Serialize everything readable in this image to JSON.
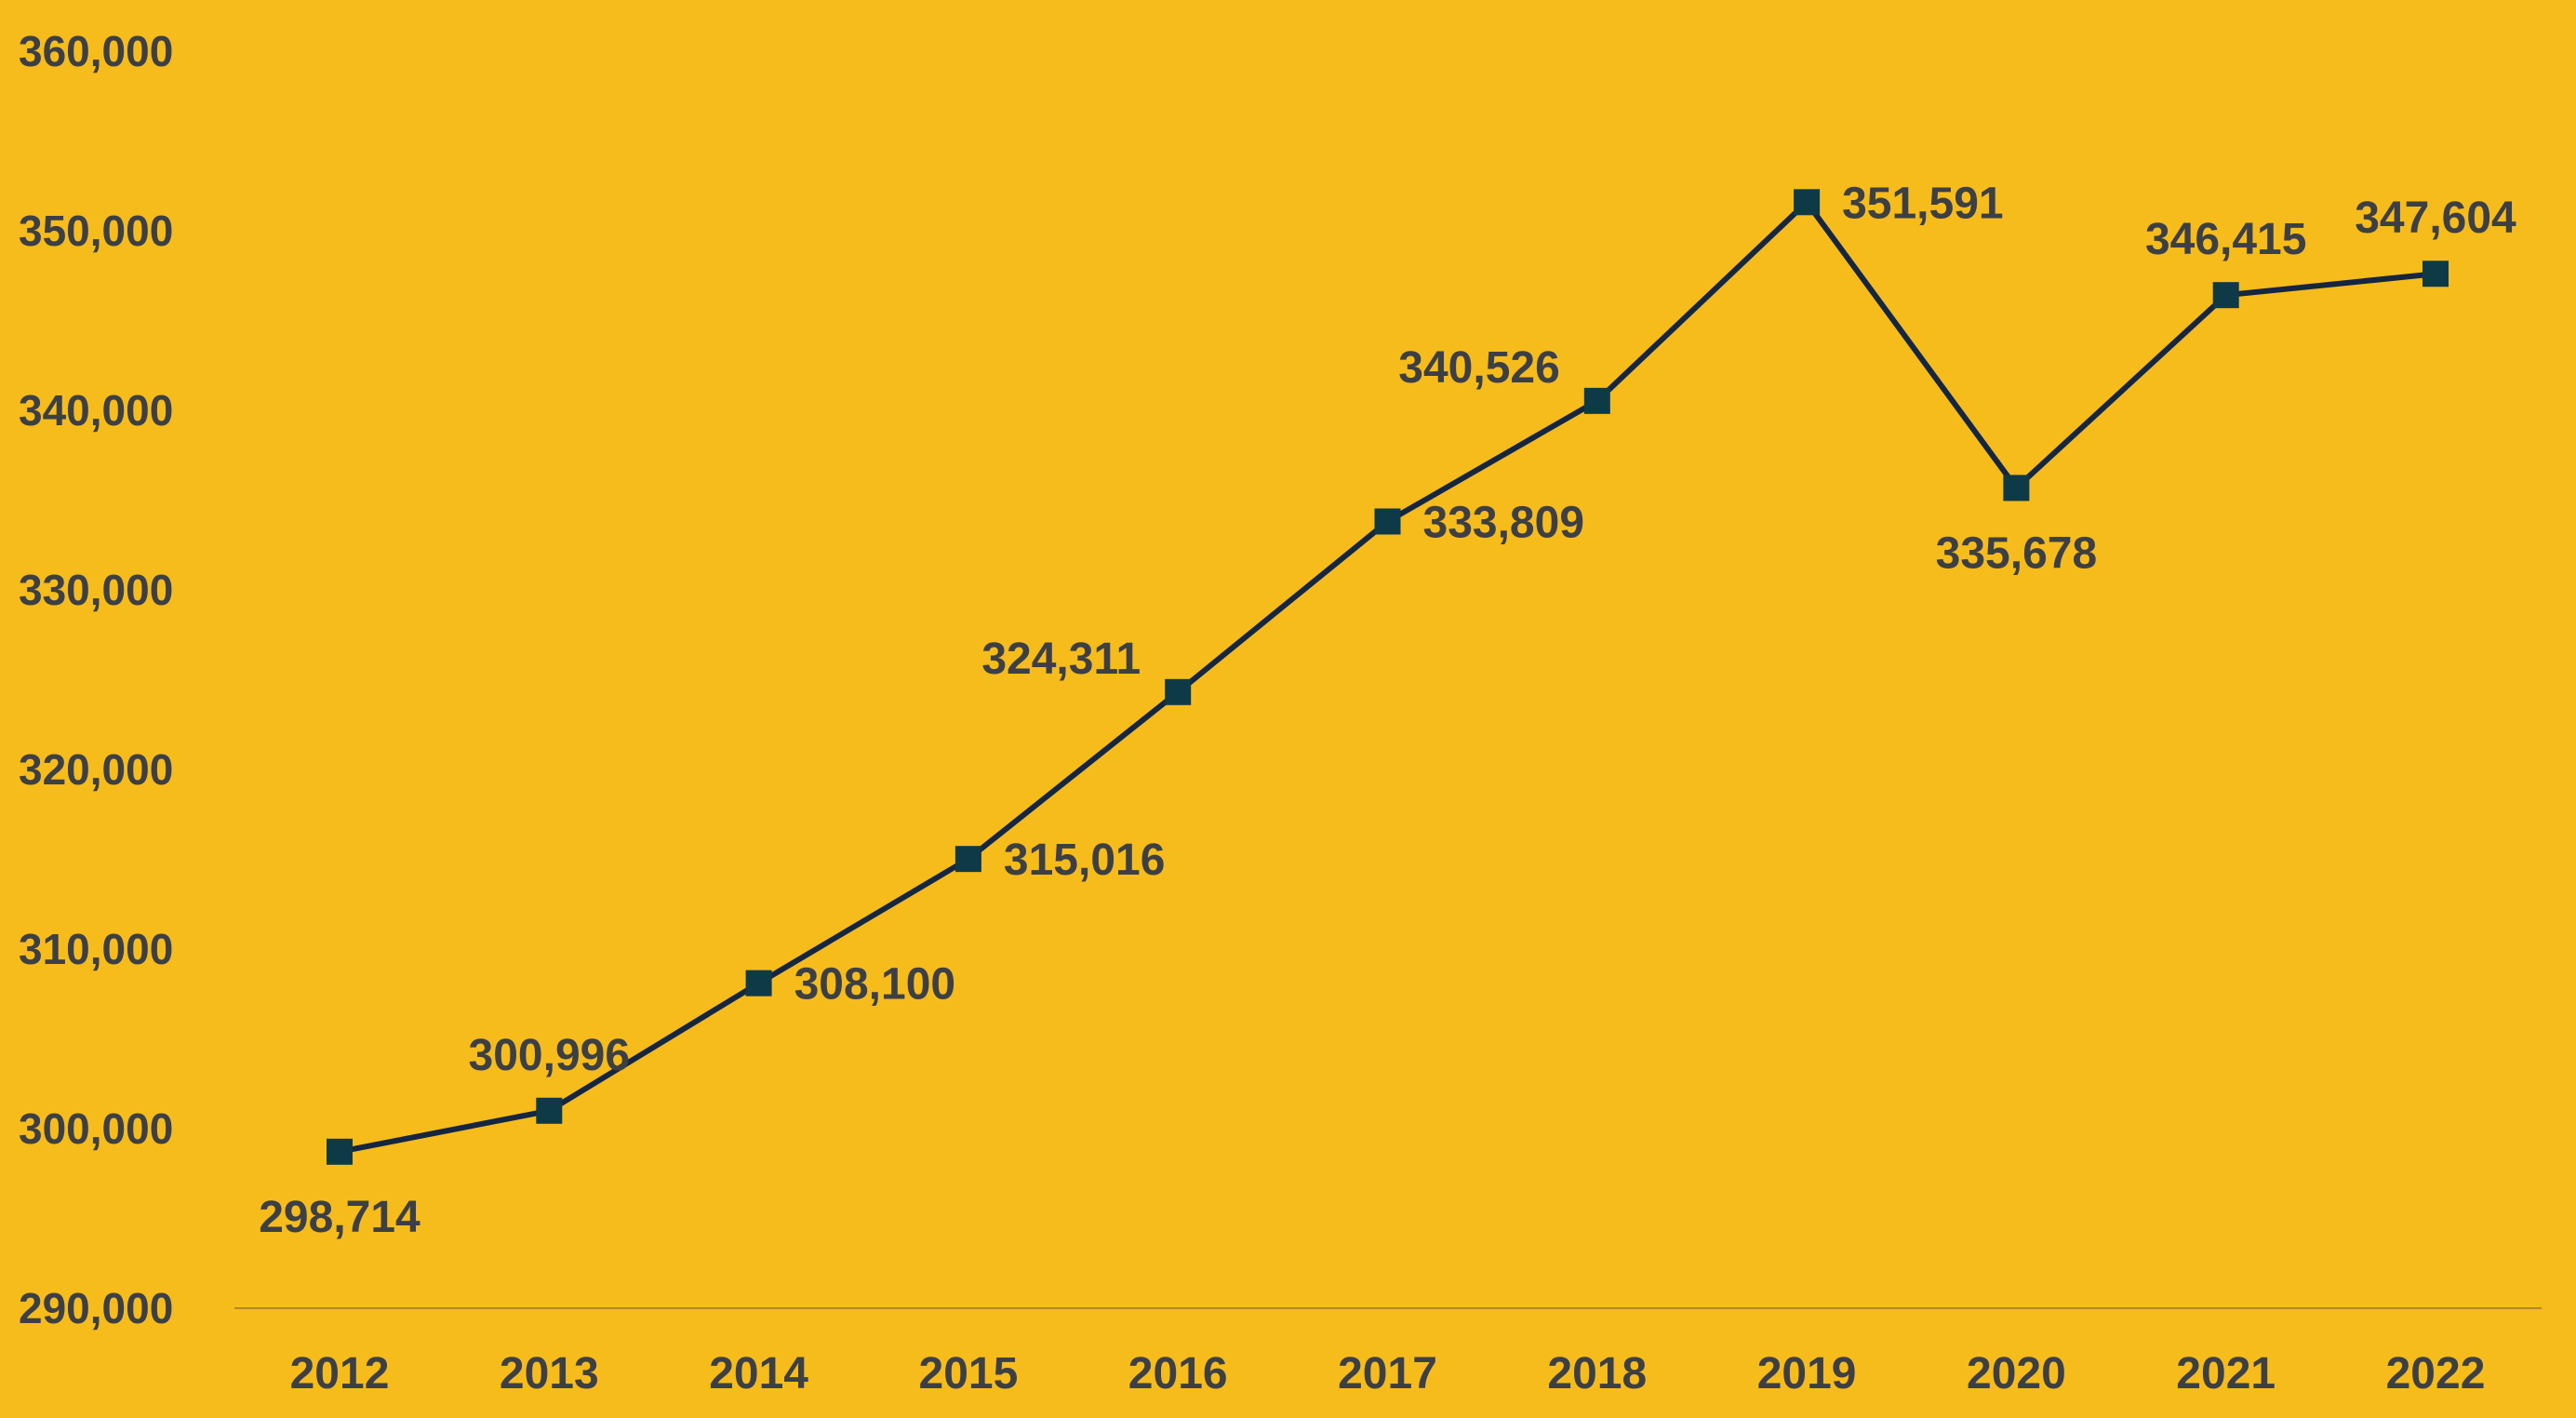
{
  "colors": {
    "background": "#F6BC1C",
    "line": "#152640",
    "marker": "#0E3A48",
    "text": "#3C3F44",
    "axis": "#B08A2A"
  },
  "chart_data": {
    "type": "line",
    "title": "",
    "xlabel": "",
    "ylabel": "",
    "categories": [
      "2012",
      "2013",
      "2014",
      "2015",
      "2016",
      "2017",
      "2018",
      "2019",
      "2020",
      "2021",
      "2022"
    ],
    "values": [
      298714,
      300996,
      308100,
      315016,
      324311,
      333809,
      340526,
      351591,
      335678,
      346415,
      347604
    ],
    "data_labels": [
      "298,714",
      "300,996",
      "308,100",
      "315,016",
      "324,311",
      "333,809",
      "340,526",
      "351,591",
      "335,678",
      "346,415",
      "347,604"
    ],
    "label_positions": [
      "below",
      "above",
      "right",
      "right",
      "left",
      "right",
      "left",
      "right",
      "below",
      "above",
      "above"
    ],
    "ylim": [
      290000,
      360000
    ],
    "yticks": [
      290000,
      300000,
      310000,
      320000,
      330000,
      340000,
      350000,
      360000
    ],
    "ytick_labels": [
      "290,000",
      "300,000",
      "310,000",
      "320,000",
      "330,000",
      "340,000",
      "350,000",
      "360,000"
    ],
    "marker": "square",
    "grid": false,
    "legend": "none"
  }
}
